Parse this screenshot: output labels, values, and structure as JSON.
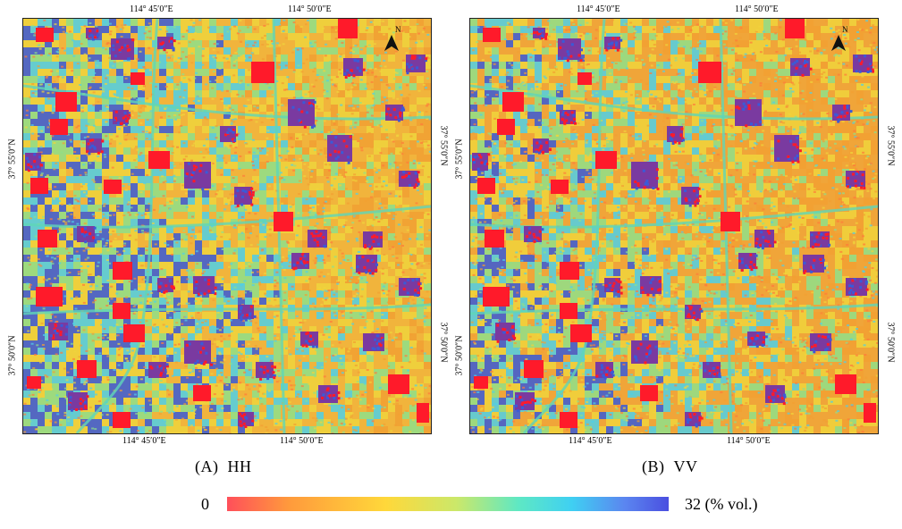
{
  "panels": [
    {
      "id": "A",
      "caption_letter": "(A)",
      "caption_pol": "HH",
      "top_ticks": [
        "114° 45′0″E",
        "114° 50′0″E"
      ],
      "bottom_ticks": [
        "114° 45′0″E",
        "114° 50′0″E"
      ],
      "left_ticks": [
        "37° 55′0″N",
        "37° 50′0″N"
      ],
      "right_ticks": [
        "37° 55′0″N",
        "37° 50′0″N"
      ],
      "north_label": "N"
    },
    {
      "id": "B",
      "caption_letter": "(B)",
      "caption_pol": "VV",
      "top_ticks": [
        "114° 45′0″E",
        "114° 50′0″E"
      ],
      "bottom_ticks": [
        "114° 45′0″E",
        "114° 50′0″E"
      ],
      "left_ticks": [
        "37° 55′0″N",
        "37° 50′0″N"
      ],
      "right_ticks": [
        "37° 55′0″N",
        "37° 50′0″N"
      ],
      "north_label": "N"
    }
  ],
  "colorbar": {
    "min_label": "0",
    "max_label": "32 (% vol.)",
    "colors": [
      "#ff4f5a",
      "#ff9a3c",
      "#ffd83a",
      "#cbe86a",
      "#5ee8c4",
      "#3fd0f2",
      "#5b86f0",
      "#4a4fe0"
    ]
  },
  "palette": {
    "urban_red": "#ff1a2a",
    "purple": "#7a3aa0",
    "blue": "#3a5ad8",
    "cyan": "#4fd0e8",
    "green": "#8fe08a",
    "yellow": "#f0d43c",
    "orange": "#f2a032"
  }
}
